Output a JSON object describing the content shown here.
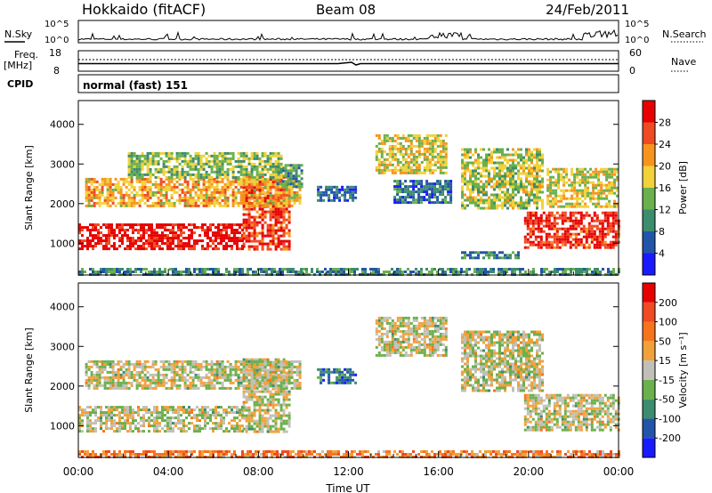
{
  "header": {
    "station": "Hokkaido (fitACF)",
    "beam": "Beam 08",
    "date": "24/Feb/2011"
  },
  "top_panels": {
    "nsky_label": "N.Sky",
    "nsky_ticks": [
      "10^5",
      "10^0"
    ],
    "nsearch_label": "N.Search",
    "nsearch_ticks": [
      "10^5",
      "10^0"
    ],
    "freq_label": "Freq.",
    "freq_unit": "[MHz]",
    "freq_ticks": [
      "18",
      "8"
    ],
    "nave_label": "Nave",
    "nave_ticks": [
      "60",
      "0"
    ],
    "cpid_label": "CPID",
    "cpid_text": "normal (fast) 151"
  },
  "chart_data": [
    {
      "type": "heatmap",
      "panel": "power",
      "ylabel": "Slant Range [km]",
      "ylim": [
        200,
        4600
      ],
      "yticks": [
        "1000",
        "2000",
        "3000",
        "4000"
      ],
      "xlim": [
        0,
        24
      ],
      "colorbar": {
        "label": "Power [dB]",
        "ticks": [
          "4",
          "8",
          "12",
          "16",
          "20",
          "24",
          "28"
        ],
        "colors": [
          "#1a1aff",
          "#2255aa",
          "#3c8c6e",
          "#6ab04c",
          "#f2d13a",
          "#f7941d",
          "#f04a22",
          "#e60000"
        ]
      },
      "regions": [
        {
          "t0": 0.0,
          "t1": 7.3,
          "r0": 850,
          "r1": 1500,
          "level": 0.95
        },
        {
          "t0": 7.3,
          "t1": 9.4,
          "r0": 850,
          "r1": 2700,
          "level": 0.85
        },
        {
          "t0": 0.3,
          "t1": 9.8,
          "r0": 1950,
          "r1": 2650,
          "level": 0.65
        },
        {
          "t0": 8.8,
          "t1": 9.9,
          "r0": 2400,
          "r1": 3000,
          "level": 0.35
        },
        {
          "t0": 2.2,
          "t1": 9.0,
          "r0": 2650,
          "r1": 3300,
          "level": 0.45
        },
        {
          "t0": 10.6,
          "t1": 12.3,
          "r0": 2100,
          "r1": 2450,
          "level": 0.2
        },
        {
          "t0": 13.2,
          "t1": 16.4,
          "r0": 2750,
          "r1": 3750,
          "level": 0.55
        },
        {
          "t0": 14.0,
          "t1": 16.5,
          "r0": 2000,
          "r1": 2600,
          "level": 0.25
        },
        {
          "t0": 17.0,
          "t1": 20.6,
          "r0": 1900,
          "r1": 3400,
          "level": 0.5
        },
        {
          "t0": 19.8,
          "t1": 24.0,
          "r0": 900,
          "r1": 1800,
          "level": 0.9
        },
        {
          "t0": 20.8,
          "t1": 24.0,
          "r0": 1900,
          "r1": 2900,
          "level": 0.55
        },
        {
          "t0": 0.0,
          "t1": 24.0,
          "r0": 200,
          "r1": 380,
          "level": 0.3
        },
        {
          "t0": 17.0,
          "t1": 19.5,
          "r0": 600,
          "r1": 800,
          "level": 0.3
        }
      ]
    },
    {
      "type": "heatmap",
      "panel": "velocity",
      "ylabel": "Slant Range [km]",
      "xlabel": "Time UT",
      "ylim": [
        200,
        4600
      ],
      "yticks": [
        "1000",
        "2000",
        "3000",
        "4000"
      ],
      "xlim": [
        0,
        24
      ],
      "xticks": [
        "00:00",
        "04:00",
        "08:00",
        "12:00",
        "16:00",
        "20:00",
        "00:00"
      ],
      "colorbar": {
        "label": "Velocity [m s⁻¹]",
        "ticks": [
          "200",
          "100",
          "50",
          "15",
          "-15",
          "-50",
          "-100",
          "-200"
        ],
        "colors": [
          "#1a1aff",
          "#2255aa",
          "#3c8c6e",
          "#6ab04c",
          "#c0c0b8",
          "#f2a13a",
          "#f7741d",
          "#f04a22",
          "#e60000"
        ]
      },
      "regions": [
        {
          "t0": 0.0,
          "t1": 7.3,
          "r0": 850,
          "r1": 1500,
          "level": 0.5
        },
        {
          "t0": 7.3,
          "t1": 9.4,
          "r0": 850,
          "r1": 2700,
          "level": 0.5
        },
        {
          "t0": 0.3,
          "t1": 9.8,
          "r0": 1950,
          "r1": 2650,
          "level": 0.5
        },
        {
          "t0": 13.2,
          "t1": 16.4,
          "r0": 2750,
          "r1": 3750,
          "level": 0.5
        },
        {
          "t0": 17.0,
          "t1": 20.6,
          "r0": 1900,
          "r1": 3400,
          "level": 0.5
        },
        {
          "t0": 19.8,
          "t1": 24.0,
          "r0": 900,
          "r1": 1800,
          "level": 0.5
        },
        {
          "t0": 10.6,
          "t1": 12.3,
          "r0": 2100,
          "r1": 2450,
          "level": 0.25
        },
        {
          "t0": 0.0,
          "t1": 24.0,
          "r0": 200,
          "r1": 380,
          "level": 0.7
        }
      ]
    }
  ]
}
